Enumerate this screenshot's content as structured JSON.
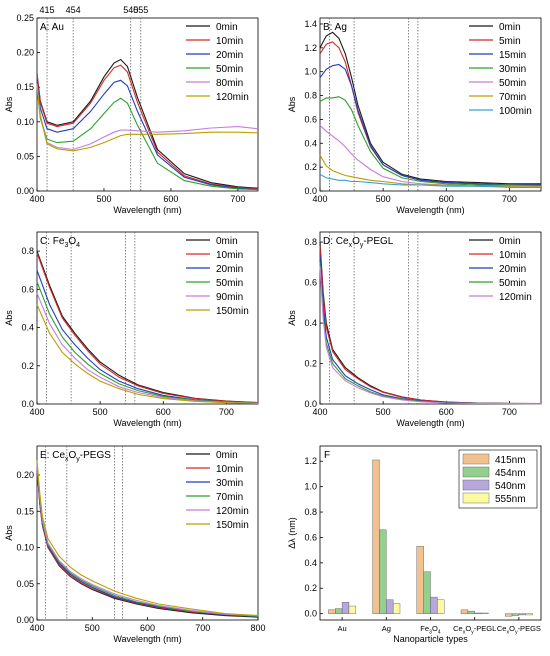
{
  "figure": {
    "tick_labels_top": [
      "415",
      "454",
      "540",
      "555"
    ]
  },
  "chart_data": [
    {
      "panel": "A",
      "title_main": "A: Au",
      "title_sub": "",
      "title_tail": "",
      "type": "line",
      "xlabel": "Wavelength (nm)",
      "ylabel": "Abs",
      "xlim": [
        400,
        730
      ],
      "ylim": [
        0,
        0.25
      ],
      "xticks": [
        400,
        500,
        600,
        700
      ],
      "yticks": [
        0.0,
        0.05,
        0.1,
        0.15,
        0.2,
        0.25
      ],
      "ytick_labels": [
        "0.00",
        "0.05",
        "0.10",
        "0.15",
        "0.20",
        "0.25"
      ],
      "vlines": [
        415,
        454,
        540,
        555
      ],
      "x": [
        400,
        405,
        415,
        430,
        454,
        480,
        500,
        515,
        525,
        535,
        550,
        580,
        620,
        660,
        700,
        730
      ],
      "series": [
        {
          "name": "0min",
          "color": "#1a1a1a",
          "values": [
            0.17,
            0.13,
            0.1,
            0.095,
            0.1,
            0.13,
            0.165,
            0.185,
            0.19,
            0.18,
            0.135,
            0.06,
            0.025,
            0.012,
            0.006,
            0.004
          ]
        },
        {
          "name": "10min",
          "color": "#d62728",
          "values": [
            0.168,
            0.128,
            0.098,
            0.093,
            0.098,
            0.127,
            0.16,
            0.178,
            0.182,
            0.172,
            0.128,
            0.056,
            0.022,
            0.01,
            0.005,
            0.003
          ]
        },
        {
          "name": "20min",
          "color": "#1f3fbf",
          "values": [
            0.16,
            0.12,
            0.09,
            0.085,
            0.09,
            0.115,
            0.14,
            0.157,
            0.16,
            0.152,
            0.115,
            0.052,
            0.02,
            0.009,
            0.004,
            0.002
          ]
        },
        {
          "name": "50min",
          "color": "#2ca02c",
          "values": [
            0.15,
            0.105,
            0.075,
            0.07,
            0.072,
            0.09,
            0.112,
            0.128,
            0.134,
            0.127,
            0.095,
            0.04,
            0.015,
            0.007,
            0.003,
            0.002
          ]
        },
        {
          "name": "80min",
          "color": "#c77ddb",
          "values": [
            0.155,
            0.11,
            0.07,
            0.063,
            0.06,
            0.068,
            0.078,
            0.085,
            0.088,
            0.088,
            0.087,
            0.085,
            0.087,
            0.091,
            0.093,
            0.09
          ]
        },
        {
          "name": "120min",
          "color": "#b8a000",
          "values": [
            0.152,
            0.108,
            0.068,
            0.061,
            0.058,
            0.063,
            0.07,
            0.076,
            0.08,
            0.082,
            0.082,
            0.082,
            0.083,
            0.085,
            0.085,
            0.084
          ]
        }
      ]
    },
    {
      "panel": "B",
      "title_main": "B: Ag",
      "title_sub": "",
      "title_tail": "",
      "type": "line",
      "xlabel": "Wavelength (nm)",
      "ylabel": "Abs",
      "xlim": [
        400,
        750
      ],
      "ylim": [
        0,
        1.45
      ],
      "xticks": [
        400,
        500,
        600,
        700
      ],
      "yticks": [
        0.0,
        0.2,
        0.4,
        0.6,
        0.8,
        1.0,
        1.2,
        1.4
      ],
      "ytick_labels": [
        "0.0",
        "0.2",
        "0.4",
        "0.6",
        "0.8",
        "1.0",
        "1.2",
        "1.4"
      ],
      "vlines": [
        415,
        454,
        540,
        555
      ],
      "x": [
        400,
        410,
        420,
        430,
        440,
        450,
        460,
        480,
        500,
        530,
        560,
        600,
        650,
        700,
        750
      ],
      "series": [
        {
          "name": "0min",
          "color": "#1a1a1a",
          "values": [
            1.2,
            1.3,
            1.33,
            1.28,
            1.15,
            0.95,
            0.72,
            0.4,
            0.24,
            0.14,
            0.1,
            0.08,
            0.07,
            0.06,
            0.06
          ]
        },
        {
          "name": "5min",
          "color": "#d62728",
          "values": [
            1.15,
            1.23,
            1.25,
            1.2,
            1.08,
            0.88,
            0.66,
            0.37,
            0.22,
            0.13,
            0.09,
            0.07,
            0.06,
            0.05,
            0.05
          ]
        },
        {
          "name": "15min",
          "color": "#1f3fbf",
          "values": [
            0.95,
            1.02,
            1.05,
            1.06,
            1.02,
            0.88,
            0.68,
            0.38,
            0.22,
            0.13,
            0.09,
            0.07,
            0.06,
            0.05,
            0.05
          ]
        },
        {
          "name": "30min",
          "color": "#2ca02c",
          "values": [
            0.75,
            0.78,
            0.78,
            0.79,
            0.76,
            0.68,
            0.55,
            0.33,
            0.19,
            0.11,
            0.08,
            0.06,
            0.05,
            0.05,
            0.04
          ]
        },
        {
          "name": "50min",
          "color": "#c77ddb",
          "values": [
            0.55,
            0.5,
            0.46,
            0.42,
            0.37,
            0.31,
            0.26,
            0.18,
            0.12,
            0.08,
            0.06,
            0.05,
            0.04,
            0.04,
            0.04
          ]
        },
        {
          "name": "70min",
          "color": "#b8a000",
          "values": [
            0.3,
            0.21,
            0.17,
            0.15,
            0.13,
            0.12,
            0.11,
            0.09,
            0.08,
            0.06,
            0.05,
            0.05,
            0.04,
            0.04,
            0.04
          ]
        },
        {
          "name": "100min",
          "color": "#3a9fd6",
          "values": [
            0.14,
            0.11,
            0.1,
            0.09,
            0.09,
            0.08,
            0.08,
            0.07,
            0.06,
            0.05,
            0.05,
            0.04,
            0.04,
            0.03,
            0.03
          ]
        }
      ]
    },
    {
      "panel": "C",
      "title_main": "C: Fe",
      "title_sub": "3",
      "title_tail": "O4",
      "type": "line",
      "xlabel": "Wavelength (nm)",
      "ylabel": "Abs",
      "xlim": [
        400,
        750
      ],
      "ylim": [
        0,
        0.9
      ],
      "xticks": [
        400,
        500,
        600,
        700
      ],
      "yticks": [
        0.0,
        0.2,
        0.4,
        0.6,
        0.8
      ],
      "ytick_labels": [
        "0.0",
        "0.2",
        "0.4",
        "0.6",
        "0.8"
      ],
      "vlines": [
        415,
        454,
        540,
        555
      ],
      "x": [
        400,
        420,
        440,
        460,
        480,
        500,
        530,
        560,
        600,
        650,
        700,
        750
      ],
      "series": [
        {
          "name": "0min",
          "color": "#1a1a1a",
          "values": [
            0.8,
            0.62,
            0.46,
            0.37,
            0.29,
            0.22,
            0.15,
            0.1,
            0.06,
            0.03,
            0.015,
            0.008
          ]
        },
        {
          "name": "10min",
          "color": "#d62728",
          "values": [
            0.79,
            0.61,
            0.45,
            0.36,
            0.28,
            0.21,
            0.14,
            0.095,
            0.055,
            0.028,
            0.014,
            0.007
          ]
        },
        {
          "name": "20min",
          "color": "#1f3fbf",
          "values": [
            0.7,
            0.52,
            0.39,
            0.31,
            0.24,
            0.18,
            0.12,
            0.08,
            0.045,
            0.022,
            0.011,
            0.006
          ]
        },
        {
          "name": "50min",
          "color": "#2ca02c",
          "values": [
            0.64,
            0.47,
            0.35,
            0.27,
            0.21,
            0.16,
            0.105,
            0.07,
            0.04,
            0.02,
            0.01,
            0.005
          ]
        },
        {
          "name": "90min",
          "color": "#c77ddb",
          "values": [
            0.58,
            0.42,
            0.31,
            0.24,
            0.18,
            0.14,
            0.09,
            0.06,
            0.034,
            0.017,
            0.009,
            0.004
          ]
        },
        {
          "name": "150min",
          "color": "#b8a000",
          "values": [
            0.52,
            0.37,
            0.27,
            0.21,
            0.16,
            0.12,
            0.08,
            0.05,
            0.028,
            0.014,
            0.007,
            0.003
          ]
        }
      ]
    },
    {
      "panel": "D",
      "title_main": "D: Ce",
      "title_sub": "x",
      "title_tail": "Oy-PEGL",
      "type": "line",
      "xlabel": "Wavelength (nm)",
      "ylabel": "Abs",
      "xlim": [
        400,
        750
      ],
      "ylim": [
        0,
        0.85
      ],
      "xticks": [
        400,
        500,
        600,
        700
      ],
      "yticks": [
        0.0,
        0.2,
        0.4,
        0.6,
        0.8
      ],
      "ytick_labels": [
        "0.0",
        "0.2",
        "0.4",
        "0.6",
        "0.8"
      ],
      "vlines": [
        415,
        454,
        540,
        555
      ],
      "x": [
        400,
        405,
        410,
        420,
        440,
        460,
        480,
        500,
        530,
        560,
        600,
        650,
        700,
        750
      ],
      "series": [
        {
          "name": "0min",
          "color": "#1a1a1a",
          "values": [
            0.8,
            0.55,
            0.4,
            0.27,
            0.18,
            0.13,
            0.09,
            0.06,
            0.035,
            0.02,
            0.01,
            0.005,
            0.003,
            0.002
          ]
        },
        {
          "name": "10min",
          "color": "#d62728",
          "values": [
            0.78,
            0.53,
            0.38,
            0.26,
            0.17,
            0.125,
            0.085,
            0.058,
            0.033,
            0.019,
            0.009,
            0.005,
            0.003,
            0.002
          ]
        },
        {
          "name": "20min",
          "color": "#1f3fbf",
          "values": [
            0.74,
            0.48,
            0.33,
            0.22,
            0.14,
            0.1,
            0.07,
            0.045,
            0.026,
            0.015,
            0.007,
            0.004,
            0.002,
            0.001
          ]
        },
        {
          "name": "50min",
          "color": "#2ca02c",
          "values": [
            0.7,
            0.44,
            0.3,
            0.2,
            0.125,
            0.09,
            0.06,
            0.04,
            0.023,
            0.013,
            0.006,
            0.003,
            0.002,
            0.001
          ]
        },
        {
          "name": "120min",
          "color": "#c77ddb",
          "values": [
            0.68,
            0.42,
            0.28,
            0.18,
            0.115,
            0.08,
            0.055,
            0.036,
            0.02,
            0.011,
            0.005,
            0.003,
            0.002,
            0.001
          ]
        }
      ]
    },
    {
      "panel": "E",
      "title_main": "E: Ce",
      "title_sub": "x",
      "title_tail": "Oy-PEGS",
      "type": "line",
      "xlabel": "Wavelength (nm)",
      "ylabel": "Abs",
      "xlim": [
        400,
        800
      ],
      "ylim": [
        0,
        0.24
      ],
      "xticks": [
        400,
        500,
        600,
        700,
        800
      ],
      "yticks": [
        0.0,
        0.05,
        0.1,
        0.15,
        0.2
      ],
      "ytick_labels": [
        "0.00",
        "0.05",
        "0.10",
        "0.15",
        "0.20"
      ],
      "vlines": [
        415,
        454,
        540,
        555
      ],
      "x": [
        400,
        405,
        410,
        420,
        440,
        460,
        480,
        500,
        540,
        580,
        620,
        680,
        740,
        800
      ],
      "series": [
        {
          "name": "0min",
          "color": "#1a1a1a",
          "values": [
            0.21,
            0.16,
            0.13,
            0.1,
            0.075,
            0.06,
            0.05,
            0.042,
            0.03,
            0.022,
            0.016,
            0.01,
            0.006,
            0.004
          ]
        },
        {
          "name": "10min",
          "color": "#d62728",
          "values": [
            0.21,
            0.16,
            0.13,
            0.1,
            0.076,
            0.061,
            0.051,
            0.043,
            0.031,
            0.023,
            0.017,
            0.011,
            0.007,
            0.005
          ]
        },
        {
          "name": "30min",
          "color": "#1f3fbf",
          "values": [
            0.21,
            0.165,
            0.132,
            0.102,
            0.078,
            0.063,
            0.053,
            0.045,
            0.032,
            0.024,
            0.018,
            0.012,
            0.007,
            0.005
          ]
        },
        {
          "name": "70min",
          "color": "#2ca02c",
          "values": [
            0.215,
            0.168,
            0.135,
            0.104,
            0.08,
            0.065,
            0.055,
            0.047,
            0.034,
            0.025,
            0.019,
            0.012,
            0.008,
            0.005
          ]
        },
        {
          "name": "120min",
          "color": "#c77ddb",
          "values": [
            0.215,
            0.17,
            0.137,
            0.106,
            0.082,
            0.067,
            0.057,
            0.049,
            0.036,
            0.027,
            0.02,
            0.013,
            0.008,
            0.006
          ]
        },
        {
          "name": "150min",
          "color": "#b8a000",
          "values": [
            0.22,
            0.175,
            0.142,
            0.112,
            0.088,
            0.073,
            0.062,
            0.054,
            0.04,
            0.03,
            0.022,
            0.015,
            0.009,
            0.006
          ]
        }
      ]
    },
    {
      "panel": "F",
      "title_main": "F",
      "type": "bar",
      "xlabel": "Nanoparticle types",
      "ylabel": "Δλ (nm)",
      "ylim": [
        -0.05,
        1.32
      ],
      "yticks": [
        0.0,
        0.2,
        0.4,
        0.6,
        0.8,
        1.0,
        1.2
      ],
      "ytick_labels": [
        "0.0",
        "0.2",
        "0.4",
        "0.6",
        "0.8",
        "1.0",
        "1.2"
      ],
      "categories": [
        {
          "main": "Au",
          "sub": "",
          "tail": ""
        },
        {
          "main": "Ag",
          "sub": "",
          "tail": ""
        },
        {
          "main": "Fe",
          "sub": "3",
          "tail": "O4"
        },
        {
          "main": "Ce",
          "sub": "x",
          "tail": "Oy-PEGL"
        },
        {
          "main": "Ce",
          "sub": "x",
          "tail": "Oy-PEGS"
        }
      ],
      "series": [
        {
          "name": "415nm",
          "color": "#f2c190",
          "values": [
            0.03,
            1.21,
            0.53,
            0.03,
            -0.02
          ]
        },
        {
          "name": "454nm",
          "color": "#93cf8e",
          "values": [
            0.04,
            0.66,
            0.33,
            0.02,
            -0.015
          ]
        },
        {
          "name": "540nm",
          "color": "#b6a8dc",
          "values": [
            0.09,
            0.11,
            0.13,
            0.005,
            -0.01
          ]
        },
        {
          "name": "555nm",
          "color": "#fbfaa0",
          "values": [
            0.06,
            0.08,
            0.11,
            0.005,
            -0.01
          ]
        }
      ]
    }
  ]
}
